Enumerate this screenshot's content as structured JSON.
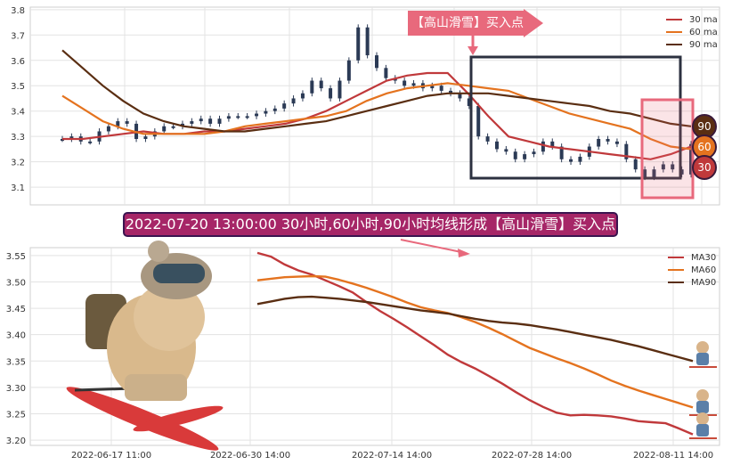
{
  "colors": {
    "ma30": "#c0393b",
    "ma60": "#e4731f",
    "ma90": "#5a2e12",
    "candle": "#2b3a55",
    "accent": "#e8697c",
    "banner_bg": "#a62667"
  },
  "top": {
    "arrow_label": "【高山滑雪】买入点",
    "badges": [
      "90",
      "60",
      "30"
    ]
  },
  "banner": "2022-07-20 13:00:00 30小时,60小时,90小时均线形成【高山滑雪】买入点",
  "chart_data": [
    {
      "type": "line",
      "ylim": [
        3.03,
        3.81
      ],
      "yticks": [
        "3.1",
        "3.2",
        "3.3",
        "3.4",
        "3.5",
        "3.6",
        "3.7",
        "3.8"
      ],
      "legend": "top-right",
      "series": [
        {
          "name": "30 ma",
          "values": [
            3.29,
            3.29,
            3.3,
            3.31,
            3.32,
            3.31,
            3.31,
            3.32,
            3.32,
            3.33,
            3.34,
            3.35,
            3.37,
            3.4,
            3.44,
            3.48,
            3.52,
            3.54,
            3.55,
            3.55,
            3.47,
            3.38,
            3.3,
            3.28,
            3.26,
            3.25,
            3.24,
            3.23,
            3.22,
            3.21,
            3.23,
            3.26
          ]
        },
        {
          "name": "60 ma",
          "values": [
            3.46,
            3.41,
            3.36,
            3.33,
            3.31,
            3.31,
            3.31,
            3.31,
            3.32,
            3.34,
            3.35,
            3.36,
            3.37,
            3.38,
            3.4,
            3.44,
            3.47,
            3.49,
            3.5,
            3.51,
            3.5,
            3.49,
            3.48,
            3.45,
            3.42,
            3.39,
            3.37,
            3.35,
            3.33,
            3.29,
            3.26,
            3.25
          ]
        },
        {
          "name": "90 ma",
          "values": [
            3.64,
            3.57,
            3.5,
            3.44,
            3.39,
            3.36,
            3.34,
            3.33,
            3.32,
            3.32,
            3.33,
            3.34,
            3.35,
            3.36,
            3.38,
            3.4,
            3.42,
            3.44,
            3.46,
            3.47,
            3.47,
            3.47,
            3.46,
            3.45,
            3.44,
            3.43,
            3.42,
            3.4,
            3.39,
            3.37,
            3.35,
            3.34
          ]
        }
      ],
      "candles": [
        3.29,
        3.3,
        3.28,
        3.28,
        3.32,
        3.34,
        3.36,
        3.35,
        3.29,
        3.3,
        3.32,
        3.34,
        3.34,
        3.35,
        3.36,
        3.37,
        3.35,
        3.37,
        3.38,
        3.38,
        3.38,
        3.39,
        3.4,
        3.41,
        3.43,
        3.45,
        3.47,
        3.52,
        3.49,
        3.45,
        3.52,
        3.6,
        3.73,
        3.62,
        3.57,
        3.53,
        3.52,
        3.5,
        3.51,
        3.49,
        3.5,
        3.48,
        3.47,
        3.45,
        3.42,
        3.3,
        3.28,
        3.25,
        3.24,
        3.21,
        3.23,
        3.24,
        3.28,
        3.26,
        3.21,
        3.2,
        3.22,
        3.26,
        3.29,
        3.28,
        3.27,
        3.21,
        3.17,
        3.14,
        3.17,
        3.19,
        3.17,
        3.15,
        3.27
      ]
    },
    {
      "type": "line",
      "ylim": [
        3.19,
        3.565
      ],
      "yticks": [
        "3.20",
        "3.25",
        "3.30",
        "3.35",
        "3.40",
        "3.45",
        "3.50",
        "3.55"
      ],
      "xticks": [
        "2022-06-17 11:00",
        "2022-06-30 14:00",
        "2022-07-14 14:00",
        "2022-07-28 14:00",
        "2022-08-11 14:00"
      ],
      "legend": "top-right",
      "series": [
        {
          "name": "MA30",
          "values": [
            3.555,
            3.548,
            3.533,
            3.522,
            3.514,
            3.503,
            3.492,
            3.48,
            3.462,
            3.445,
            3.43,
            3.414,
            3.397,
            3.38,
            3.362,
            3.348,
            3.336,
            3.322,
            3.307,
            3.291,
            3.276,
            3.263,
            3.252,
            3.247,
            3.248,
            3.247,
            3.245,
            3.241,
            3.236,
            3.234,
            3.232,
            3.222,
            3.211
          ]
        },
        {
          "name": "MA60",
          "values": [
            3.503,
            3.506,
            3.509,
            3.51,
            3.511,
            3.51,
            3.504,
            3.497,
            3.489,
            3.48,
            3.471,
            3.461,
            3.452,
            3.446,
            3.441,
            3.433,
            3.424,
            3.413,
            3.401,
            3.388,
            3.375,
            3.365,
            3.355,
            3.346,
            3.336,
            3.325,
            3.313,
            3.303,
            3.294,
            3.286,
            3.278,
            3.27,
            3.262
          ]
        },
        {
          "name": "MA90",
          "values": [
            3.458,
            3.463,
            3.468,
            3.471,
            3.472,
            3.47,
            3.468,
            3.465,
            3.462,
            3.458,
            3.454,
            3.45,
            3.446,
            3.443,
            3.44,
            3.435,
            3.43,
            3.426,
            3.423,
            3.421,
            3.418,
            3.414,
            3.41,
            3.405,
            3.4,
            3.395,
            3.39,
            3.384,
            3.378,
            3.371,
            3.364,
            3.357,
            3.35
          ]
        }
      ]
    }
  ]
}
